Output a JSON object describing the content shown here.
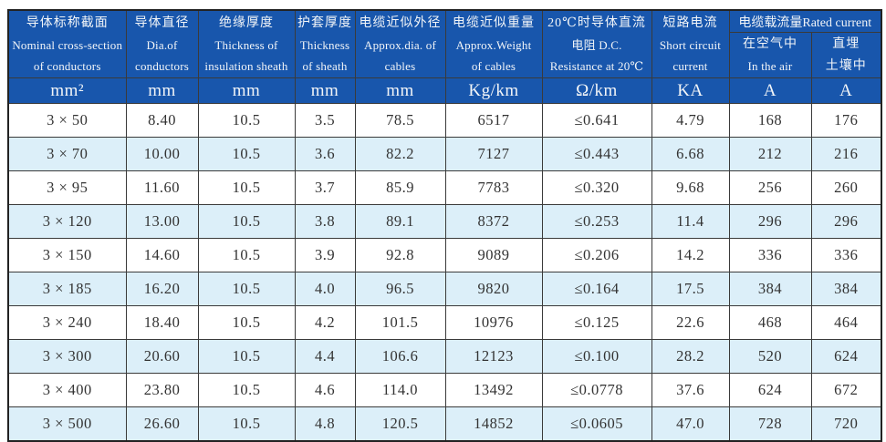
{
  "colors": {
    "header_bg": "#1856ac",
    "header_text": "#f2f5f8",
    "row_bg": "#ffffff",
    "row_alt_bg": "#dceff9",
    "grid_border": "#3a3a3a",
    "outer_border": "#222222",
    "data_text": "#333333"
  },
  "table": {
    "columns": [
      {
        "lines": [
          "导体标称截面",
          "Nominal cross-section",
          "of conductors"
        ]
      },
      {
        "lines": [
          "导体直径",
          "Dia.of",
          "conductors"
        ]
      },
      {
        "lines": [
          "绝缘厚度",
          "Thickness of",
          "insulation sheath"
        ]
      },
      {
        "lines": [
          "护套厚度",
          "Thickness",
          "of sheath"
        ]
      },
      {
        "lines": [
          "电缆近似外径",
          "Approx.dia. of",
          "cables"
        ]
      },
      {
        "lines": [
          "电缆近似重量",
          "Approx.Weight",
          "of cables"
        ]
      },
      {
        "lines": [
          "20℃时导体直流",
          "电阻 D.C.",
          "Resistance at 20℃"
        ]
      },
      {
        "lines": [
          "短路电流",
          "Short circuit",
          "current"
        ]
      }
    ],
    "rated_current_group": {
      "label": "电缆载流量Rated current",
      "sub_columns": [
        {
          "lines": [
            "在空气中",
            "In the air"
          ]
        },
        {
          "lines": [
            "直埋",
            "土壤中"
          ]
        }
      ]
    },
    "units": [
      "mm²",
      "mm",
      "mm",
      "mm",
      "mm",
      "Kg/km",
      "Ω/km",
      "KA",
      "A",
      "A"
    ],
    "rows": [
      [
        "3 × 50",
        "8.40",
        "10.5",
        "3.5",
        "78.5",
        "6517",
        "≤0.641",
        "4.79",
        "168",
        "176"
      ],
      [
        "3 × 70",
        "10.00",
        "10.5",
        "3.6",
        "82.2",
        "7127",
        "≤0.443",
        "6.68",
        "212",
        "216"
      ],
      [
        "3 × 95",
        "11.60",
        "10.5",
        "3.7",
        "85.9",
        "7783",
        "≤0.320",
        "9.68",
        "256",
        "260"
      ],
      [
        "3 × 120",
        "13.00",
        "10.5",
        "3.8",
        "89.1",
        "8372",
        "≤0.253",
        "11.4",
        "296",
        "296"
      ],
      [
        "3 × 150",
        "14.60",
        "10.5",
        "3.9",
        "92.8",
        "9089",
        "≤0.206",
        "14.2",
        "336",
        "336"
      ],
      [
        "3 × 185",
        "16.20",
        "10.5",
        "4.0",
        "96.5",
        "9820",
        "≤0.164",
        "17.5",
        "384",
        "384"
      ],
      [
        "3 × 240",
        "18.40",
        "10.5",
        "4.2",
        "101.5",
        "10976",
        "≤0.125",
        "22.6",
        "468",
        "464"
      ],
      [
        "3 × 300",
        "20.60",
        "10.5",
        "4.4",
        "106.6",
        "12123",
        "≤0.100",
        "28.2",
        "520",
        "624"
      ],
      [
        "3 × 400",
        "23.80",
        "10.5",
        "4.6",
        "114.0",
        "13492",
        "≤0.0778",
        "37.6",
        "624",
        "672"
      ],
      [
        "3 × 500",
        "26.60",
        "10.5",
        "4.8",
        "120.5",
        "14852",
        "≤0.0605",
        "47.0",
        "728",
        "720"
      ]
    ]
  }
}
